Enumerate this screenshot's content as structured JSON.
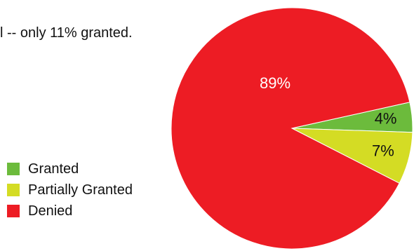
{
  "caption": "l -- only 11% granted.",
  "chart_data": {
    "type": "pie",
    "slices": [
      {
        "label": "Granted",
        "value": 4,
        "display": "4%",
        "color": "#6cbb3c",
        "label_color": "#111111"
      },
      {
        "label": "Partially Granted",
        "value": 7,
        "display": "7%",
        "color": "#d4dc24",
        "label_color": "#111111"
      },
      {
        "label": "Denied",
        "value": 89,
        "display": "89%",
        "color": "#ed1c24",
        "label_color": "#ffffff"
      }
    ],
    "legend": [
      "Granted",
      "Partially Granted",
      "Denied"
    ],
    "legend_position": "left"
  }
}
